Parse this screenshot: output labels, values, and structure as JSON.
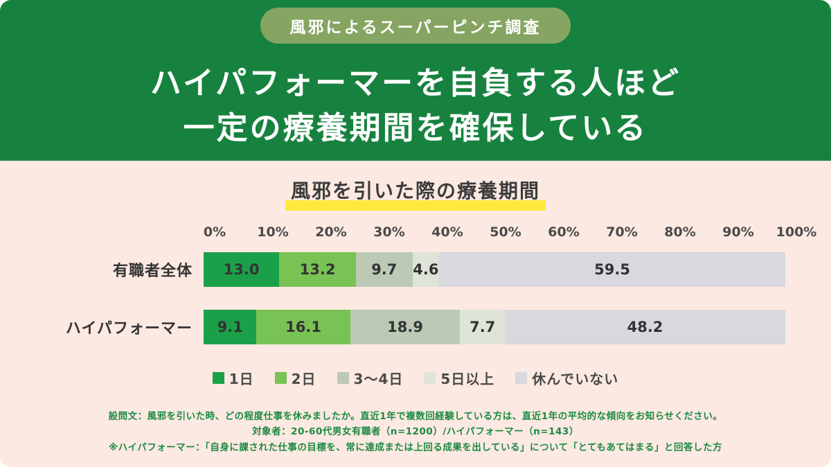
{
  "badge": {
    "label": "風邪によるスーパーピンチ調査"
  },
  "header": {
    "title_line1": "ハイパフォーマーを自負する人ほど",
    "title_line2": "一定の療養期間を確保している"
  },
  "chart": {
    "title": "風邪を引いた際の療養期間",
    "axis_ticks": [
      "0%",
      "10%",
      "20%",
      "30%",
      "40%",
      "50%",
      "60%",
      "70%",
      "80%",
      "90%",
      "100%"
    ],
    "rows": [
      {
        "label": "有職者全体",
        "values": [
          13.0,
          13.2,
          9.7,
          4.6,
          59.5
        ]
      },
      {
        "label": "ハイパフォーマー",
        "values": [
          9.1,
          16.1,
          18.9,
          7.7,
          48.2
        ]
      }
    ],
    "series": [
      {
        "name": "1日",
        "color": "#1ba04a"
      },
      {
        "name": "2日",
        "color": "#79c254"
      },
      {
        "name": "3〜4日",
        "color": "#bccab5"
      },
      {
        "name": "5日以上",
        "color": "#dfe4d8"
      },
      {
        "name": "休んでいない",
        "color": "#d8d8de"
      }
    ]
  },
  "chart_data": {
    "type": "bar",
    "orientation": "horizontal",
    "stacked": true,
    "title": "風邪を引いた際の療養期間",
    "categories": [
      "有職者全体",
      "ハイパフォーマー"
    ],
    "series": [
      {
        "name": "1日",
        "values": [
          13.0,
          9.1
        ]
      },
      {
        "name": "2日",
        "values": [
          13.2,
          16.1
        ]
      },
      {
        "name": "3〜4日",
        "values": [
          9.7,
          18.9
        ]
      },
      {
        "name": "5日以上",
        "values": [
          4.6,
          7.7
        ]
      },
      {
        "name": "休んでいない",
        "values": [
          59.5,
          48.2
        ]
      }
    ],
    "unit": "%",
    "xlim": [
      0,
      100
    ],
    "x_ticks": [
      "0%",
      "10%",
      "20%",
      "30%",
      "40%",
      "50%",
      "60%",
      "70%",
      "80%",
      "90%",
      "100%"
    ],
    "legend_position": "bottom",
    "grid": false
  },
  "colors": {
    "header_bg": "#17823f",
    "badge_bg": "#87a562",
    "page_bg": "#fce9e1",
    "highlight_yellow": "#ffe83d",
    "footnote_green": "#1b8a43"
  },
  "footnotes": [
    "設問文：風邪を引いた時、どの程度仕事を休みましたか。直近1年で複数回経験している方は、直近1年の平均的な傾向をお知らせください。",
    "対象者：20-60代男女有職者（n=1200）/ハイパフォーマー（n=143）",
    "※ハイパフォーマー：「自身に課された仕事の目標を、常に達成または上回る成果を出している」について「とてもあてはまる」と回答した方"
  ]
}
